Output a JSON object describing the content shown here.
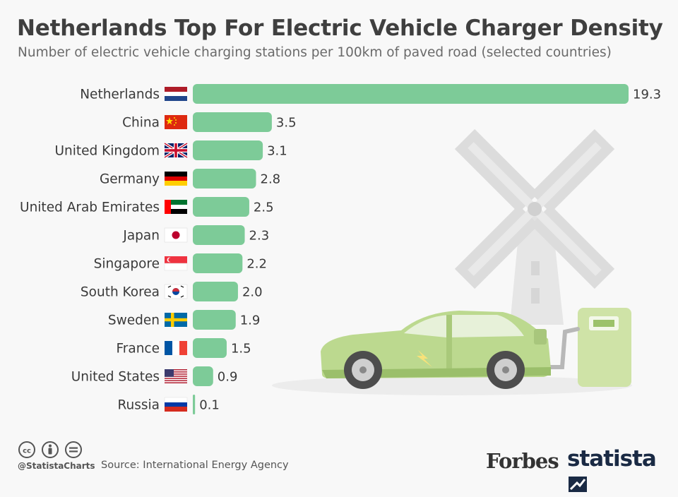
{
  "title": "Netherlands Top For Electric Vehicle Charger Density",
  "subtitle": "Number of electric vehicle charging stations per 100km of paved road (selected countries)",
  "footer": {
    "handle": "@StatistaCharts",
    "source": "Source: International Energy Agency",
    "logos": [
      "Forbes",
      "statista"
    ]
  },
  "colors": {
    "bar": "#7dcb98",
    "car": "#bcd98f",
    "illustration_gray": "#dcdcdc"
  },
  "chart_data": {
    "type": "bar",
    "orientation": "horizontal",
    "title": "Netherlands Top For Electric Vehicle Charger Density",
    "subtitle": "Number of electric vehicle charging stations per 100km of paved road (selected countries)",
    "categories": [
      "Netherlands",
      "China",
      "United Kingdom",
      "Germany",
      "United Arab Emirates",
      "Japan",
      "Singapore",
      "South Korea",
      "Sweden",
      "France",
      "United States",
      "Russia"
    ],
    "values": [
      19.3,
      3.5,
      3.1,
      2.8,
      2.5,
      2.3,
      2.2,
      2.0,
      1.9,
      1.5,
      0.9,
      0.1
    ],
    "value_labels": [
      "19.3",
      "3.5",
      "3.1",
      "2.8",
      "2.5",
      "2.3",
      "2.2",
      "2.0",
      "1.9",
      "1.5",
      "0.9",
      "0.1"
    ],
    "flags": [
      "netherlands-flag-icon",
      "china-flag-icon",
      "uk-flag-icon",
      "germany-flag-icon",
      "uae-flag-icon",
      "japan-flag-icon",
      "singapore-flag-icon",
      "south-korea-flag-icon",
      "sweden-flag-icon",
      "france-flag-icon",
      "usa-flag-icon",
      "russia-flag-icon"
    ],
    "xlim": [
      0,
      19.3
    ],
    "grid": false,
    "legend": "none"
  }
}
